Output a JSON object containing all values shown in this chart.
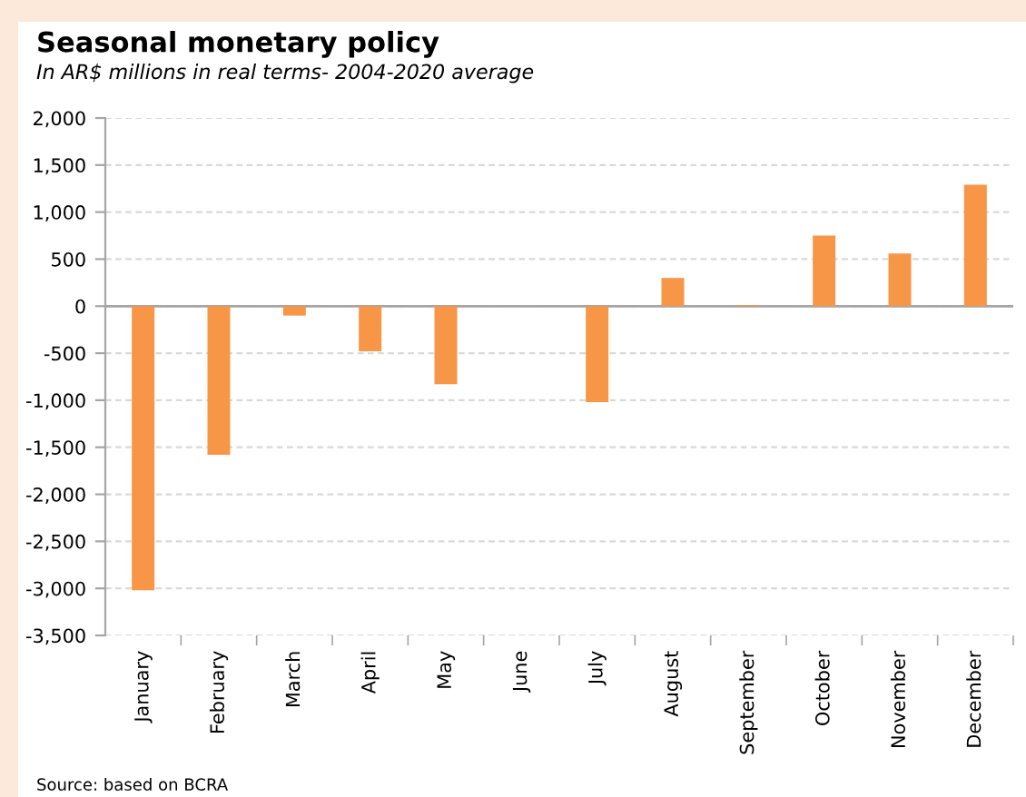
{
  "chart_data": {
    "type": "bar",
    "title": "Seasonal monetary policy",
    "subtitle": "In AR$ millions in real terms- 2004-2020 average",
    "categories": [
      "January",
      "February",
      "March",
      "April",
      "May",
      "June",
      "July",
      "August",
      "September",
      "October",
      "November",
      "December"
    ],
    "values": [
      -3020,
      -1580,
      -100,
      -480,
      -830,
      0,
      -1020,
      300,
      10,
      750,
      560,
      1290
    ],
    "color": "#f79646",
    "ylim": [
      -3500,
      2000
    ],
    "yticks": [
      {
        "value": -3500,
        "label": "-3,500"
      },
      {
        "value": -3000,
        "label": "-3,000"
      },
      {
        "value": -2500,
        "label": "-2,500"
      },
      {
        "value": -2000,
        "label": "-2,000"
      },
      {
        "value": -1500,
        "label": "-1,500"
      },
      {
        "value": -1000,
        "label": "-1,000"
      },
      {
        "value": -500,
        "label": "-500"
      },
      0,
      500,
      {
        "value": 1000,
        "label": "1,000"
      },
      {
        "value": 1500,
        "label": "1,500"
      },
      {
        "value": 2000,
        "label": "2,000"
      }
    ],
    "grid": "y",
    "annotations": [
      "Source: based on BCRA"
    ]
  }
}
